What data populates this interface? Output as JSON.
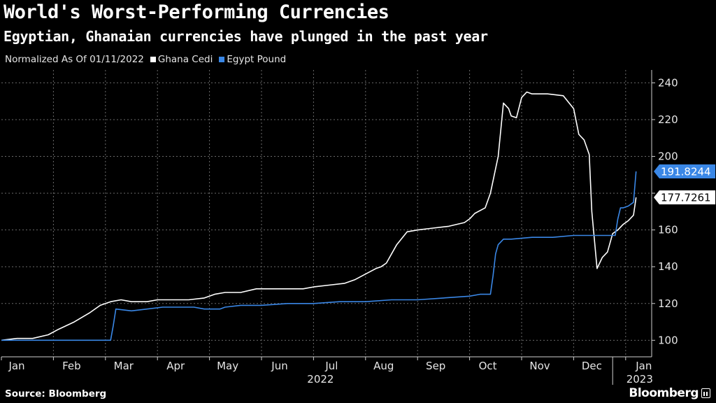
{
  "header": {
    "title": "World's Worst-Performing Currencies",
    "subtitle": "Egyptian, Ghanaian currencies have plunged in the past year"
  },
  "legend": {
    "note": "Normalized As Of 01/11/2022",
    "items": [
      {
        "label": "Ghana Cedi",
        "color": "#ffffff"
      },
      {
        "label": "Egypt Pound",
        "color": "#3a87e6"
      }
    ]
  },
  "footer": {
    "source": "Source: Bloomberg",
    "logo": "Bloomberg"
  },
  "chart_data": {
    "type": "line",
    "title": "World's Worst-Performing Currencies",
    "subtitle": "Egyptian, Ghanaian currencies have plunged in the past year",
    "xlabel": "",
    "ylabel": "",
    "ylim": [
      91,
      247
    ],
    "xlim": [
      0,
      12.5
    ],
    "y_ticks": [
      100,
      120,
      140,
      160,
      180,
      200,
      220,
      240
    ],
    "y_tick_labels": [
      "100",
      "120",
      "140",
      "160",
      "",
      "200",
      "220",
      "240"
    ],
    "x_tick_positions": [
      0,
      1,
      2,
      3,
      4,
      5,
      6,
      7,
      8,
      9,
      10,
      11,
      12
    ],
    "x_tick_labels": [
      "Jan",
      "Feb",
      "Mar",
      "Apr",
      "May",
      "Jun",
      "Jul",
      "Aug",
      "Sep",
      "Oct",
      "Nov",
      "Dec",
      "Jan"
    ],
    "x_year_labels": [
      {
        "label": "2022",
        "at": 6.0
      },
      {
        "label": "2023",
        "at": 12.0
      }
    ],
    "grid": true,
    "series": [
      {
        "name": "Ghana Cedi",
        "color": "#ffffff",
        "last_value": "177.7261",
        "x": [
          0,
          0.3,
          0.6,
          0.9,
          1.1,
          1.4,
          1.7,
          1.9,
          2.1,
          2.3,
          2.5,
          2.8,
          3.0,
          3.3,
          3.6,
          3.9,
          4.1,
          4.3,
          4.6,
          4.9,
          5.2,
          5.5,
          5.8,
          6.0,
          6.3,
          6.6,
          6.8,
          7.0,
          7.2,
          7.3,
          7.4,
          7.6,
          7.8,
          8.0,
          8.3,
          8.6,
          8.9,
          9.0,
          9.1,
          9.3,
          9.4,
          9.55,
          9.65,
          9.75,
          9.8,
          9.9,
          10.0,
          10.1,
          10.2,
          10.35,
          10.5,
          10.8,
          11.0,
          11.1,
          11.2,
          11.3,
          11.35,
          11.45,
          11.55,
          11.65,
          11.75,
          11.85,
          11.95,
          12.05,
          12.15,
          12.2
        ],
        "y": [
          100,
          101,
          101,
          103,
          106,
          110,
          115,
          119,
          121,
          122,
          121,
          121,
          122,
          122,
          122,
          123,
          125,
          126,
          126,
          128,
          128,
          128,
          128,
          129,
          130,
          131,
          133,
          136,
          139,
          140,
          142,
          152,
          159,
          160,
          161,
          162,
          164,
          166,
          169,
          172,
          180,
          200,
          229,
          226,
          222,
          221,
          232,
          235,
          234,
          234,
          234,
          233,
          226,
          212,
          209,
          201,
          170,
          139,
          145,
          148,
          158,
          160,
          163,
          165,
          168,
          177.7261
        ]
      },
      {
        "name": "Egypt Pound",
        "color": "#3a87e6",
        "last_value": "191.8244",
        "x": [
          0,
          0.5,
          1.0,
          1.5,
          1.9,
          2.1,
          2.15,
          2.2,
          2.5,
          2.8,
          3.1,
          3.4,
          3.7,
          3.9,
          4.2,
          4.3,
          4.6,
          5.0,
          5.5,
          6.0,
          6.5,
          7.0,
          7.5,
          8.0,
          8.5,
          9.0,
          9.2,
          9.4,
          9.45,
          9.5,
          9.55,
          9.65,
          9.8,
          10.2,
          10.6,
          11.0,
          11.4,
          11.7,
          11.8,
          11.85,
          11.9,
          11.95,
          12.05,
          12.15,
          12.2
        ],
        "y": [
          100,
          100,
          100,
          100,
          100,
          100,
          108,
          117,
          116,
          117,
          118,
          118,
          118,
          117,
          117,
          118,
          119,
          119,
          120,
          120,
          121,
          121,
          122,
          122,
          123,
          124,
          125,
          125,
          135,
          147,
          152,
          155,
          155,
          156,
          156,
          157,
          157,
          157,
          157,
          166,
          172,
          172,
          173,
          175,
          191.8244
        ]
      }
    ]
  }
}
